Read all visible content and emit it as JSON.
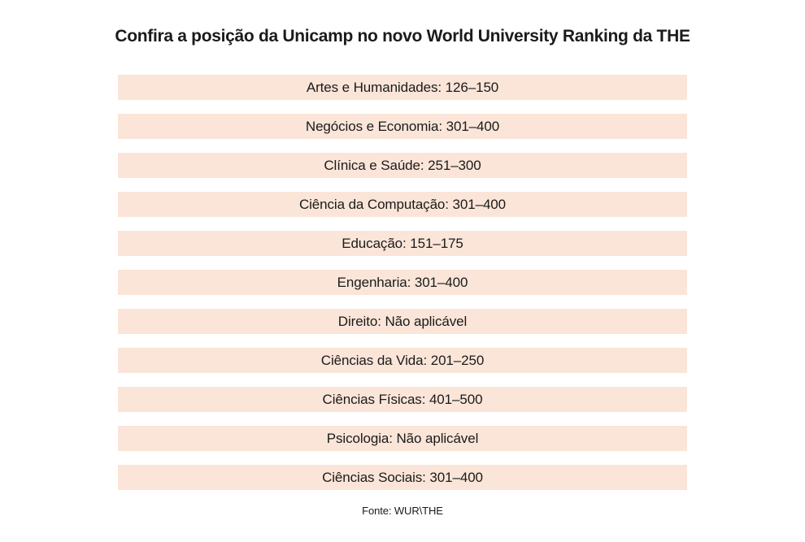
{
  "page": {
    "title": "Confira a posição da Unicamp no novo World University Ranking da THE",
    "source": "Fonte: WUR\\THE"
  },
  "colors": {
    "page_background": "#ffffff",
    "bar_background": "#fae5d8",
    "text": "#1b1b1b"
  },
  "rows": [
    {
      "text": "Artes e Humanidades: 126–150"
    },
    {
      "text": "Negócios e Economia: 301–400"
    },
    {
      "text": "Clínica e Saúde: 251–300"
    },
    {
      "text": "Ciência da Computação: 301–400"
    },
    {
      "text": "Educação: 151–175"
    },
    {
      "text": "Engenharia: 301–400"
    },
    {
      "text": "Direito: Não aplicável"
    },
    {
      "text": "Ciências da Vida: 201–250"
    },
    {
      "text": "Ciências Físicas: 401–500"
    },
    {
      "text": "Psicologia: Não aplicável"
    },
    {
      "text": "Ciências Sociais: 301–400"
    }
  ],
  "chart_data": {
    "type": "table",
    "title": "Confira a posição da Unicamp no novo World University Ranking da THE",
    "categories": [
      "Artes e Humanidades",
      "Negócios e Economia",
      "Clínica e Saúde",
      "Ciência da Computação",
      "Educação",
      "Engenharia",
      "Direito",
      "Ciências da Vida",
      "Ciências Físicas",
      "Psicologia",
      "Ciências Sociais"
    ],
    "values": [
      "126–150",
      "301–400",
      "251–300",
      "301–400",
      "151–175",
      "301–400",
      "Não aplicável",
      "201–250",
      "401–500",
      "Não aplicável",
      "301–400"
    ],
    "source": "Fonte: WUR\\THE",
    "legend": "none",
    "grid": "off"
  }
}
